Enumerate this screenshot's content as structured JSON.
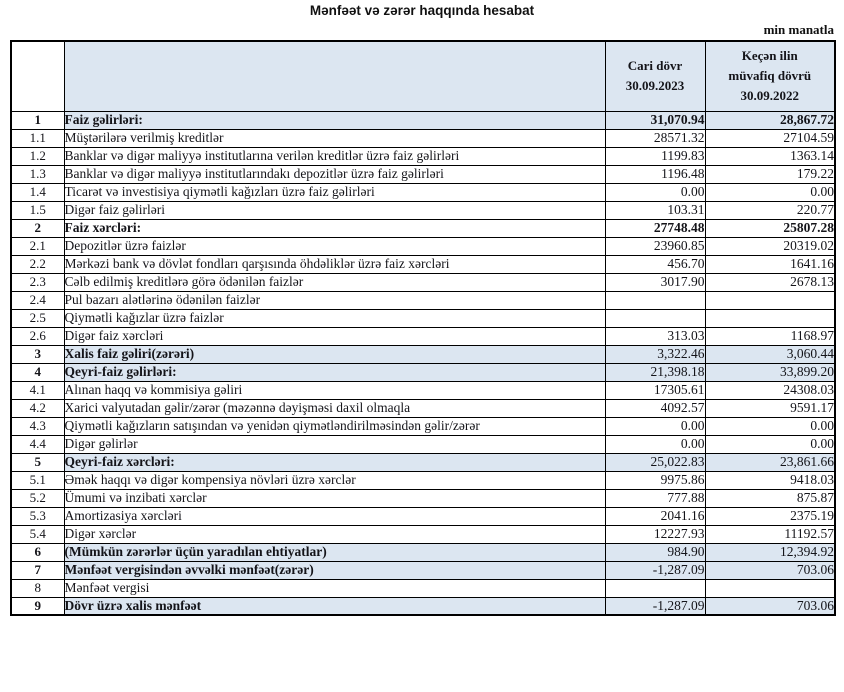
{
  "title": "Mənfəət və zərər haqqında hesabat",
  "unit_note": "min manatla",
  "colors": {
    "row_highlight": "#dce6f1",
    "border": "#000000"
  },
  "table": {
    "header": {
      "period_current": {
        "line1": "Cari dövr",
        "line2": "30.09.2023"
      },
      "period_previous": {
        "line1": "Keçən ilin",
        "line2": "müvafiq dövrü",
        "line3": "30.09.2022"
      }
    },
    "rows": [
      {
        "no": "1",
        "label": "Faiz gəlirləri:",
        "current": "31,070.94",
        "previous": "28,867.72",
        "highlight": true,
        "bold": true,
        "bold_values": true
      },
      {
        "no": "1.1",
        "label": "Müştərilərə verilmiş kreditlər",
        "current": "28571.32",
        "previous": "27104.59",
        "highlight": false,
        "bold": false,
        "bold_values": false
      },
      {
        "no": "1.2",
        "label": "Banklar və digər maliyyə institutlarına verilən kreditlər üzrə faiz gəlirləri",
        "current": "1199.83",
        "previous": "1363.14",
        "highlight": false,
        "bold": false,
        "bold_values": false
      },
      {
        "no": "1.3",
        "label": "Banklar və digər maliyyə institutlarındakı depozitlər üzrə faiz gəlirləri",
        "current": "1196.48",
        "previous": "179.22",
        "highlight": false,
        "bold": false,
        "bold_values": false
      },
      {
        "no": "1.4",
        "label": "Ticarət və investisiya qiymətli kağızları üzrə faiz gəlirləri",
        "current": "0.00",
        "previous": "0.00",
        "highlight": false,
        "bold": false,
        "bold_values": false
      },
      {
        "no": "1.5",
        "label": "Digər faiz gəlirləri",
        "current": "103.31",
        "previous": "220.77",
        "highlight": false,
        "bold": false,
        "bold_values": false
      },
      {
        "no": "2",
        "label": "Faiz xərcləri:",
        "current": "27748.48",
        "previous": "25807.28",
        "highlight": false,
        "bold": true,
        "bold_values": true
      },
      {
        "no": "2.1",
        "label": "Depozitlər üzrə faizlər",
        "current": "23960.85",
        "previous": "20319.02",
        "highlight": false,
        "bold": false,
        "bold_values": false
      },
      {
        "no": "2.2",
        "label": "Mərkəzi bank və dövlət fondları qarşısında öhdəliklər üzrə faiz xərcləri",
        "current": "456.70",
        "previous": "1641.16",
        "highlight": false,
        "bold": false,
        "bold_values": false
      },
      {
        "no": "2.3",
        "label": "Cəlb edilmiş kreditlərə görə ödənilən faizlər",
        "current": "3017.90",
        "previous": "2678.13",
        "highlight": false,
        "bold": false,
        "bold_values": false
      },
      {
        "no": "2.4",
        "label": "Pul bazarı alətlərinə ödənilən faizlər",
        "current": "",
        "previous": "",
        "highlight": false,
        "bold": false,
        "bold_values": false
      },
      {
        "no": "2.5",
        "label": "Qiymətli kağızlar üzrə faizlər",
        "current": "",
        "previous": "",
        "highlight": false,
        "bold": false,
        "bold_values": false
      },
      {
        "no": "2.6",
        "label": "Digər faiz xərcləri",
        "current": "313.03",
        "previous": "1168.97",
        "highlight": false,
        "bold": false,
        "bold_values": false
      },
      {
        "no": "3",
        "label": "Xalis faiz gəliri(zərəri)",
        "current": "3,322.46",
        "previous": "3,060.44",
        "highlight": true,
        "bold": true,
        "bold_values": false
      },
      {
        "no": "4",
        "label": "Qeyri-faiz gəlirləri:",
        "current": "21,398.18",
        "previous": "33,899.20",
        "highlight": true,
        "bold": true,
        "bold_values": false
      },
      {
        "no": "4.1",
        "label": "Alınan haqq və kommisiya gəliri",
        "current": "17305.61",
        "previous": "24308.03",
        "highlight": false,
        "bold": false,
        "bold_values": false
      },
      {
        "no": "4.2",
        "label": "Xarici valyutadan gəlir/zərər (məzənnə dəyişməsi daxil olmaqla",
        "current": "4092.57",
        "previous": "9591.17",
        "highlight": false,
        "bold": false,
        "bold_values": false
      },
      {
        "no": "4.3",
        "label": "Qiymətli kağızların satışından və yenidən qiymətləndirilməsindən gəlir/zərər",
        "current": "0.00",
        "previous": "0.00",
        "highlight": false,
        "bold": false,
        "bold_values": false
      },
      {
        "no": "4.4",
        "label": "Digər gəlirlər",
        "current": "0.00",
        "previous": "0.00",
        "highlight": false,
        "bold": false,
        "bold_values": false
      },
      {
        "no": "5",
        "label": "Qeyri-faiz xərcləri:",
        "current": "25,022.83",
        "previous": "23,861.66",
        "highlight": true,
        "bold": true,
        "bold_values": false
      },
      {
        "no": "5.1",
        "label": "Əmək haqqı və digər kompensiya növləri üzrə xərclər",
        "current": "9975.86",
        "previous": "9418.03",
        "highlight": false,
        "bold": false,
        "bold_values": false
      },
      {
        "no": "5.2",
        "label": "Ümumi və inzibati xərclər",
        "current": "777.88",
        "previous": "875.87",
        "highlight": false,
        "bold": false,
        "bold_values": false
      },
      {
        "no": "5.3",
        "label": "Amortizasiya xərcləri",
        "current": "2041.16",
        "previous": "2375.19",
        "highlight": false,
        "bold": false,
        "bold_values": false
      },
      {
        "no": "5.4",
        "label": "Digər xərclər",
        "current": "12227.93",
        "previous": "11192.57",
        "highlight": false,
        "bold": false,
        "bold_values": false
      },
      {
        "no": "6",
        "label": "(Mümkün zərərlər üçün yaradılan ehtiyatlar)",
        "current": "984.90",
        "previous": "12,394.92",
        "highlight": true,
        "bold": true,
        "bold_values": false
      },
      {
        "no": "7",
        "label": "Mənfəət vergisindən əvvəlki mənfəət(zərər)",
        "current": "-1,287.09",
        "previous": "703.06",
        "highlight": true,
        "bold": true,
        "bold_values": false
      },
      {
        "no": "8",
        "label": "Mənfəət vergisi",
        "current": "",
        "previous": "",
        "highlight": false,
        "bold": false,
        "bold_values": false
      },
      {
        "no": "9",
        "label": "Dövr üzrə xalis mənfəət",
        "current": "-1,287.09",
        "previous": "703.06",
        "highlight": true,
        "bold": true,
        "bold_values": false
      }
    ]
  }
}
